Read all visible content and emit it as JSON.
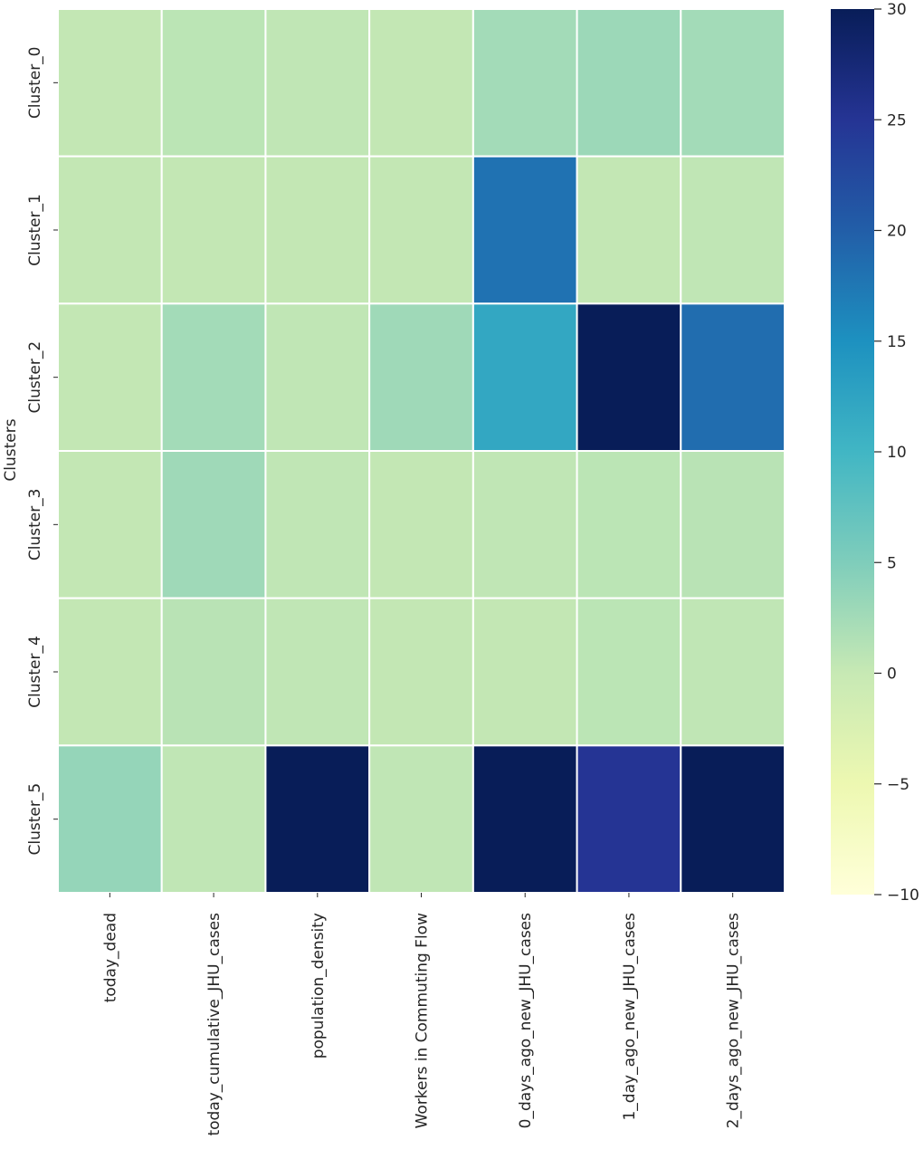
{
  "chart_data": {
    "type": "heatmap",
    "title": "",
    "xlabel": "",
    "ylabel": "Clusters",
    "rows": [
      "Cluster_0",
      "Cluster_1",
      "Cluster_2",
      "Cluster_3",
      "Cluster_4",
      "Cluster_5"
    ],
    "columns": [
      "today_dead",
      "today_cumulative_JHU_cases",
      "population_density",
      "Workers in Commuting Flow",
      "0_days_ago_new_JHU_cases",
      "1_day_ago_new_JHU_cases",
      "2_days_ago_new_JHU_cases"
    ],
    "values": [
      [
        0.3,
        0.8,
        0.5,
        0.3,
        2.5,
        3.0,
        2.5
      ],
      [
        0.3,
        0.3,
        0.3,
        0.3,
        18.0,
        0.3,
        0.5
      ],
      [
        0.3,
        2.5,
        0.5,
        2.8,
        12.0,
        30.0,
        18.5
      ],
      [
        0.3,
        2.8,
        0.5,
        0.3,
        0.5,
        0.8,
        1.0
      ],
      [
        0.3,
        1.0,
        0.5,
        0.3,
        0.3,
        0.8,
        0.5
      ],
      [
        3.5,
        0.5,
        30.0,
        0.5,
        30.0,
        25.0,
        30.0
      ]
    ],
    "colorbar": {
      "min": -10,
      "max": 30,
      "ticks": [
        "30",
        "25",
        "20",
        "15",
        "10",
        "5",
        "0",
        "−5",
        "−10"
      ],
      "tick_values": [
        30,
        25,
        20,
        15,
        10,
        5,
        0,
        -5,
        -10
      ],
      "colormap": "YlGnBu"
    },
    "cell_border_color": "#ffffff"
  }
}
